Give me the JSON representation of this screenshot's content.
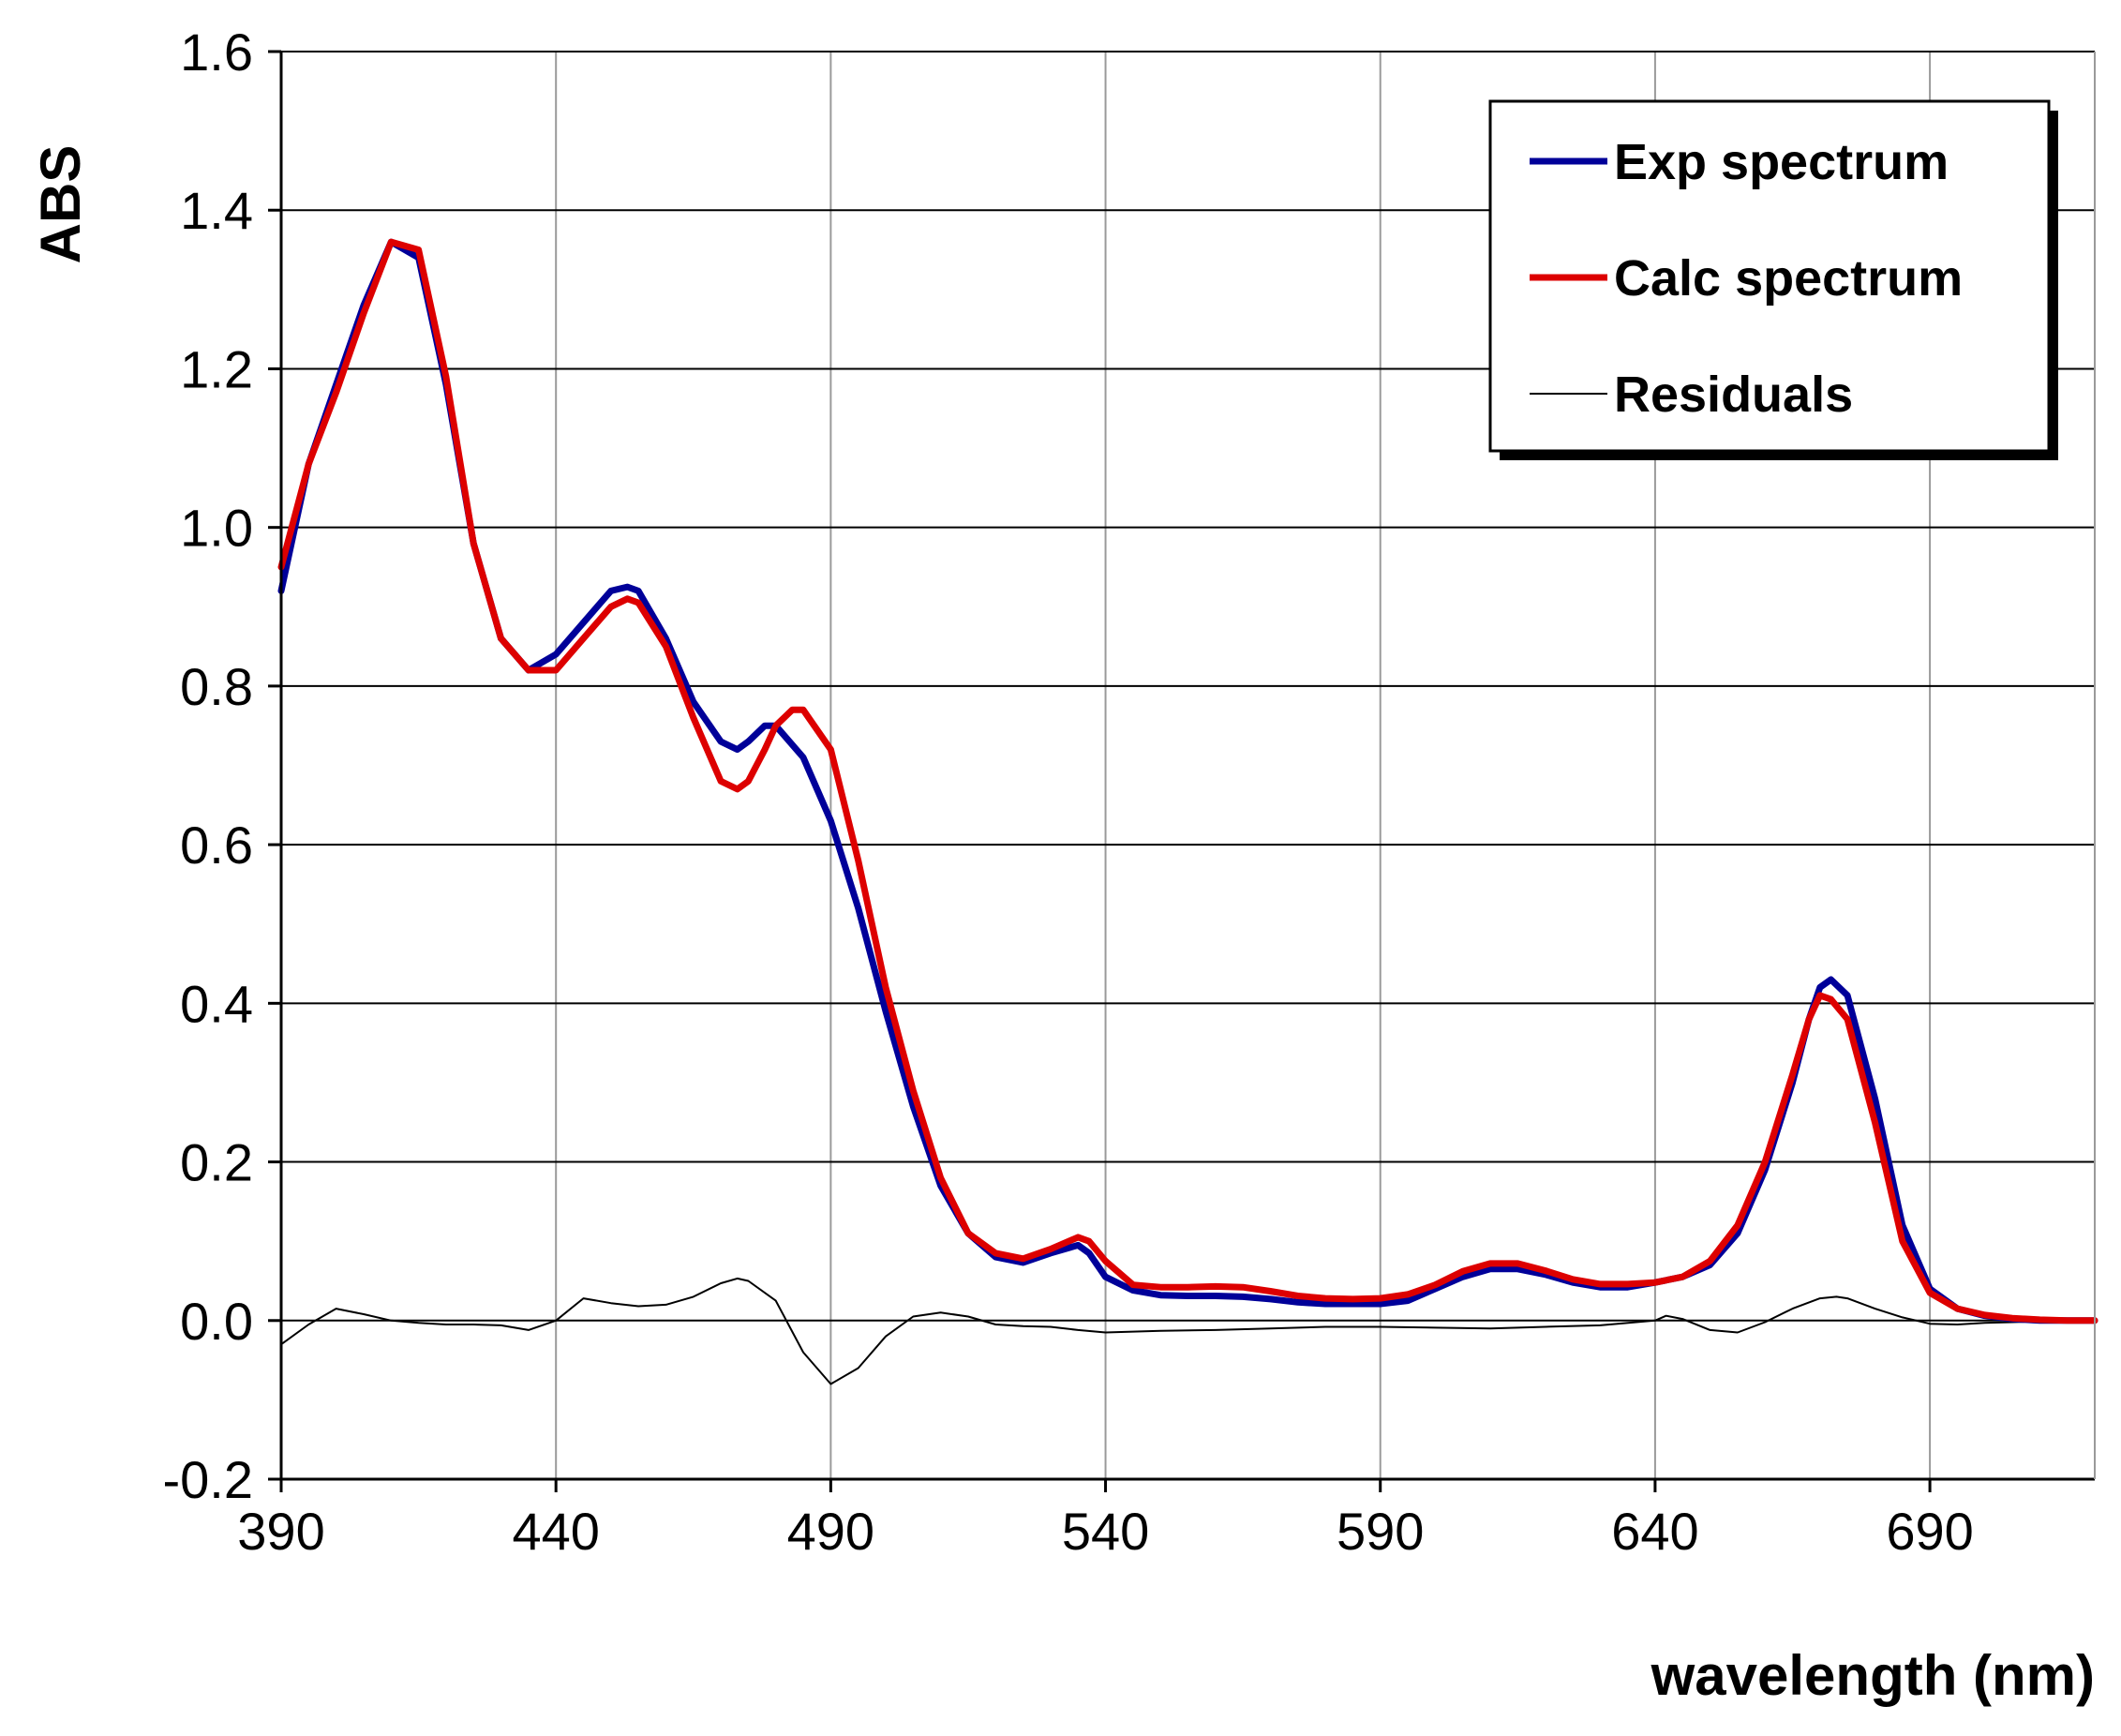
{
  "chart_data": {
    "type": "line",
    "title": "",
    "xlabel": "wavelength (nm)",
    "ylabel": "ABS",
    "xlim": [
      390,
      720
    ],
    "ylim": [
      -0.2,
      1.6
    ],
    "x_ticks": [
      390,
      440,
      490,
      540,
      590,
      640,
      690
    ],
    "x_tick_labels": [
      "390",
      "440",
      "490",
      "540",
      "590",
      "640",
      "690"
    ],
    "y_ticks": [
      -0.2,
      0.0,
      0.2,
      0.4,
      0.6,
      0.8,
      1.0,
      1.2,
      1.4,
      1.6
    ],
    "y_tick_labels": [
      "-0.2",
      "0.0",
      "0.2",
      "0.4",
      "0.6",
      "0.8",
      "1.0",
      "1.2",
      "1.4",
      "1.6"
    ],
    "grid": true,
    "legend_position": "top-right",
    "series": [
      {
        "name": "Exp spectrum",
        "color": "#000099",
        "x": [
          390,
          395,
          400,
          405,
          410,
          415,
          420,
          425,
          430,
          435,
          440,
          445,
          450,
          453,
          455,
          460,
          465,
          470,
          473,
          475,
          478,
          480,
          485,
          490,
          495,
          500,
          505,
          510,
          515,
          520,
          525,
          530,
          535,
          537,
          540,
          545,
          550,
          555,
          560,
          565,
          570,
          575,
          580,
          585,
          590,
          595,
          600,
          605,
          610,
          615,
          620,
          625,
          630,
          635,
          640,
          645,
          650,
          655,
          660,
          665,
          668,
          670,
          672,
          675,
          680,
          685,
          690,
          695,
          700,
          705,
          710,
          715,
          720
        ],
        "y": [
          0.92,
          1.08,
          1.18,
          1.28,
          1.36,
          1.34,
          1.18,
          0.98,
          0.86,
          0.82,
          0.84,
          0.88,
          0.92,
          0.925,
          0.92,
          0.86,
          0.78,
          0.73,
          0.72,
          0.73,
          0.75,
          0.75,
          0.71,
          0.63,
          0.52,
          0.39,
          0.27,
          0.17,
          0.11,
          0.08,
          0.073,
          0.085,
          0.095,
          0.085,
          0.055,
          0.038,
          0.032,
          0.031,
          0.031,
          0.03,
          0.027,
          0.023,
          0.021,
          0.021,
          0.021,
          0.025,
          0.04,
          0.055,
          0.065,
          0.065,
          0.058,
          0.048,
          0.042,
          0.042,
          0.048,
          0.055,
          0.07,
          0.11,
          0.19,
          0.3,
          0.38,
          0.42,
          0.43,
          0.41,
          0.28,
          0.12,
          0.04,
          0.015,
          0.006,
          0.002,
          0.0,
          0.0,
          0.0
        ]
      },
      {
        "name": "Calc spectrum",
        "color": "#dd0000",
        "x": [
          390,
          395,
          400,
          405,
          410,
          415,
          420,
          425,
          430,
          435,
          440,
          445,
          450,
          453,
          455,
          460,
          465,
          470,
          473,
          475,
          478,
          480,
          483,
          485,
          490,
          495,
          500,
          505,
          510,
          515,
          520,
          525,
          530,
          535,
          537,
          540,
          545,
          550,
          555,
          560,
          565,
          570,
          575,
          580,
          585,
          590,
          595,
          600,
          605,
          610,
          615,
          620,
          625,
          630,
          635,
          640,
          645,
          650,
          655,
          660,
          665,
          668,
          670,
          672,
          675,
          680,
          685,
          690,
          695,
          700,
          705,
          710,
          715,
          720
        ],
        "y": [
          0.95,
          1.08,
          1.17,
          1.27,
          1.36,
          1.35,
          1.19,
          0.98,
          0.86,
          0.82,
          0.82,
          0.86,
          0.9,
          0.91,
          0.905,
          0.85,
          0.76,
          0.68,
          0.67,
          0.68,
          0.72,
          0.75,
          0.77,
          0.77,
          0.72,
          0.58,
          0.42,
          0.29,
          0.18,
          0.11,
          0.085,
          0.078,
          0.09,
          0.105,
          0.1,
          0.075,
          0.045,
          0.042,
          0.042,
          0.043,
          0.042,
          0.037,
          0.031,
          0.028,
          0.027,
          0.028,
          0.033,
          0.045,
          0.062,
          0.072,
          0.072,
          0.063,
          0.052,
          0.046,
          0.046,
          0.048,
          0.055,
          0.075,
          0.12,
          0.2,
          0.31,
          0.38,
          0.41,
          0.405,
          0.38,
          0.25,
          0.1,
          0.035,
          0.015,
          0.007,
          0.003,
          0.001,
          0.0,
          0.0
        ]
      },
      {
        "name": "Residuals",
        "color": "#000000",
        "x": [
          390,
          395,
          400,
          405,
          410,
          415,
          420,
          425,
          430,
          435,
          440,
          445,
          450,
          455,
          460,
          465,
          470,
          473,
          475,
          480,
          485,
          490,
          495,
          500,
          505,
          510,
          515,
          520,
          525,
          530,
          535,
          540,
          545,
          550,
          560,
          570,
          580,
          590,
          600,
          610,
          620,
          630,
          640,
          642,
          645,
          650,
          655,
          660,
          665,
          670,
          673,
          675,
          680,
          685,
          690,
          695,
          700,
          705,
          710,
          715,
          720
        ],
        "y": [
          -0.03,
          -0.005,
          0.015,
          0.008,
          0.0,
          -0.003,
          -0.005,
          -0.005,
          -0.006,
          -0.012,
          0.0,
          0.028,
          0.022,
          0.018,
          0.02,
          0.03,
          0.047,
          0.053,
          0.05,
          0.025,
          -0.04,
          -0.08,
          -0.06,
          -0.02,
          0.005,
          0.01,
          0.005,
          -0.005,
          -0.007,
          -0.008,
          -0.012,
          -0.015,
          -0.014,
          -0.013,
          -0.012,
          -0.01,
          -0.008,
          -0.008,
          -0.009,
          -0.01,
          -0.008,
          -0.006,
          0.0,
          0.006,
          0.002,
          -0.012,
          -0.015,
          -0.002,
          0.015,
          0.028,
          0.03,
          0.028,
          0.015,
          0.004,
          -0.004,
          -0.005,
          -0.003,
          -0.002,
          -0.001,
          0.0,
          0.0
        ]
      }
    ]
  }
}
